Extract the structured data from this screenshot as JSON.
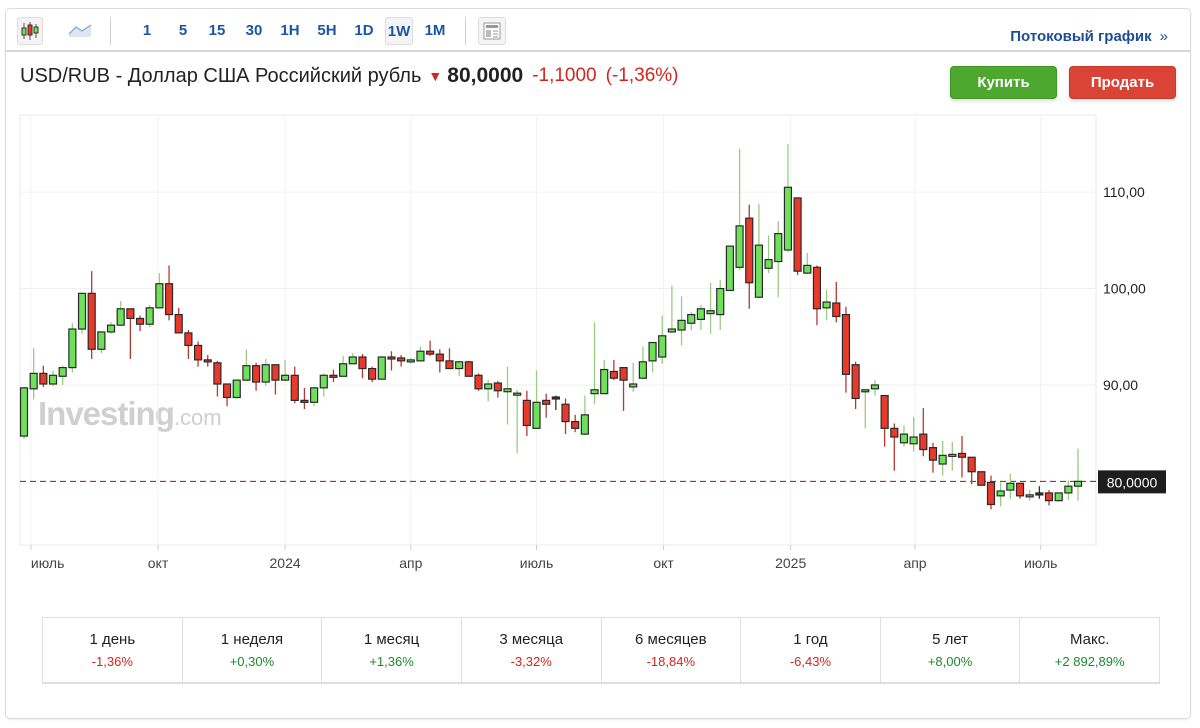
{
  "toolbar": {
    "chart_types": [
      {
        "icon": "candlestick-icon",
        "selected": true
      },
      {
        "icon": "area-chart-icon",
        "selected": false
      }
    ],
    "intervals": [
      {
        "label": "1",
        "selected": false
      },
      {
        "label": "5",
        "selected": false
      },
      {
        "label": "15",
        "selected": false
      },
      {
        "label": "30",
        "selected": false
      },
      {
        "label": "1H",
        "selected": false
      },
      {
        "label": "5H",
        "selected": false
      },
      {
        "label": "1D",
        "selected": false
      },
      {
        "label": "1W",
        "selected": true
      },
      {
        "label": "1M",
        "selected": false
      }
    ],
    "layout_icon": "news-layout-icon",
    "stream_link": "Потоковый график",
    "stream_chevron": "»"
  },
  "header": {
    "title": "USD/RUB - Доллар США Российский рубль",
    "direction_icon": "arrow-down-icon",
    "price": "80,0000",
    "change": "-1,1000",
    "change_pct": "(-1,36%)",
    "buy_label": "Купить",
    "sell_label": "Продать"
  },
  "colors": {
    "up_body": "#6ee05a",
    "down_body": "#e8392a",
    "up_wick": "#9ccb85",
    "down_wick": "#b33a32",
    "outline": "#2a2a2a",
    "price_line": "#8b1a1a",
    "buy": "#4ea72e",
    "sell": "#d94436",
    "link": "#1b56a6"
  },
  "watermark": {
    "brand": "Investing",
    ".com": ".com"
  },
  "chart_data": {
    "type": "candlestick",
    "interval": "1W",
    "ylim": [
      73.4,
      118
    ],
    "grid": true,
    "y_ticks": [
      {
        "value": 90,
        "label": "90,00"
      },
      {
        "value": 100,
        "label": "100,00"
      },
      {
        "value": 110,
        "label": "110,00"
      }
    ],
    "x_ticks": [
      {
        "date": "2023-07-01",
        "label": "июль"
      },
      {
        "date": "2023-10-01",
        "label": "окт"
      },
      {
        "date": "2024-01-01",
        "label": "2024"
      },
      {
        "date": "2024-04-01",
        "label": "апр"
      },
      {
        "date": "2024-07-01",
        "label": "июль"
      },
      {
        "date": "2024-10-01",
        "label": "окт"
      },
      {
        "date": "2025-01-01",
        "label": "2025"
      },
      {
        "date": "2025-04-01",
        "label": "апр"
      },
      {
        "date": "2025-07-01",
        "label": "июль"
      }
    ],
    "current_price": {
      "value": 80.0,
      "label": "80,0000"
    },
    "columns": [
      "date",
      "open",
      "high",
      "low",
      "close"
    ],
    "candles": [
      [
        "2023-06-26",
        84.7,
        89.8,
        84.4,
        89.7
      ],
      [
        "2023-07-03",
        89.6,
        93.8,
        88.5,
        91.2
      ],
      [
        "2023-07-10",
        91.2,
        92.0,
        89.8,
        90.1
      ],
      [
        "2023-07-17",
        90.1,
        91.5,
        89.9,
        91.0
      ],
      [
        "2023-07-24",
        90.9,
        92.0,
        90.0,
        91.8
      ],
      [
        "2023-07-31",
        91.8,
        96.4,
        91.3,
        95.8
      ],
      [
        "2023-08-07",
        95.8,
        99.5,
        95.3,
        99.5
      ],
      [
        "2023-08-14",
        99.5,
        101.8,
        92.7,
        93.7
      ],
      [
        "2023-08-21",
        93.7,
        95.5,
        93.3,
        95.5
      ],
      [
        "2023-08-28",
        95.5,
        96.5,
        95.3,
        96.2
      ],
      [
        "2023-09-04",
        96.2,
        98.7,
        96.2,
        97.9
      ],
      [
        "2023-09-11",
        97.9,
        97.9,
        92.7,
        96.9
      ],
      [
        "2023-09-18",
        96.9,
        97.2,
        95.6,
        96.3
      ],
      [
        "2023-09-25",
        96.3,
        98.3,
        96.0,
        98.0
      ],
      [
        "2023-10-02",
        98.0,
        101.6,
        98.0,
        100.5
      ],
      [
        "2023-10-09",
        100.5,
        102.4,
        96.7,
        97.3
      ],
      [
        "2023-10-16",
        97.3,
        98.0,
        95.4,
        95.4
      ],
      [
        "2023-10-23",
        95.4,
        95.7,
        92.7,
        94.1
      ],
      [
        "2023-10-30",
        94.1,
        94.5,
        91.9,
        92.6
      ],
      [
        "2023-11-06",
        92.6,
        93.1,
        91.9,
        92.5
      ],
      [
        "2023-11-13",
        92.3,
        92.5,
        88.8,
        90.1
      ],
      [
        "2023-11-20",
        90.1,
        90.1,
        87.8,
        88.7
      ],
      [
        "2023-11-27",
        88.7,
        90.5,
        88.6,
        90.5
      ],
      [
        "2023-12-04",
        90.5,
        93.7,
        90.4,
        92.0
      ],
      [
        "2023-12-11",
        92.0,
        92.3,
        89.4,
        90.3
      ],
      [
        "2023-12-18",
        90.3,
        92.7,
        89.9,
        92.1
      ],
      [
        "2023-12-25",
        92.1,
        92.1,
        89.0,
        90.5
      ],
      [
        "2024-01-01",
        90.5,
        92.6,
        90.4,
        91.0
      ],
      [
        "2024-01-08",
        91.0,
        91.9,
        88.1,
        88.4
      ],
      [
        "2024-01-15",
        88.4,
        89.7,
        87.5,
        88.2
      ],
      [
        "2024-01-22",
        88.2,
        89.8,
        87.8,
        89.7
      ],
      [
        "2024-01-29",
        89.7,
        91.2,
        88.8,
        91.0
      ],
      [
        "2024-02-05",
        91.0,
        91.6,
        90.3,
        90.9
      ],
      [
        "2024-02-12",
        90.9,
        93.0,
        90.9,
        92.2
      ],
      [
        "2024-02-19",
        92.2,
        93.3,
        92.2,
        92.9
      ],
      [
        "2024-02-26",
        92.9,
        93.2,
        90.7,
        91.7
      ],
      [
        "2024-03-04",
        91.7,
        91.9,
        90.3,
        90.6
      ],
      [
        "2024-03-11",
        90.6,
        93.0,
        90.6,
        92.9
      ],
      [
        "2024-03-18",
        92.9,
        93.5,
        91.5,
        92.8
      ],
      [
        "2024-03-25",
        92.8,
        93.1,
        91.9,
        92.5
      ],
      [
        "2024-04-01",
        92.5,
        92.8,
        92.2,
        92.6
      ],
      [
        "2024-04-08",
        92.5,
        94.0,
        92.5,
        93.5
      ],
      [
        "2024-04-15",
        93.5,
        94.6,
        93.0,
        93.2
      ],
      [
        "2024-04-22",
        93.2,
        93.7,
        91.3,
        92.5
      ],
      [
        "2024-04-29",
        92.5,
        93.8,
        91.7,
        91.7
      ],
      [
        "2024-05-06",
        91.7,
        92.5,
        90.9,
        92.4
      ],
      [
        "2024-05-13",
        92.4,
        92.5,
        90.9,
        90.9
      ],
      [
        "2024-05-20",
        91.0,
        91.2,
        89.4,
        89.6
      ],
      [
        "2024-05-27",
        89.6,
        90.5,
        88.3,
        90.1
      ],
      [
        "2024-06-03",
        90.2,
        90.4,
        88.7,
        89.4
      ],
      [
        "2024-06-10",
        89.3,
        91.9,
        85.9,
        89.6
      ],
      [
        "2024-06-17",
        89.1,
        89.5,
        82.9,
        89.15
      ],
      [
        "2024-06-24",
        88.4,
        89.4,
        84.7,
        85.8
      ],
      [
        "2024-07-01",
        85.5,
        91.5,
        85.5,
        88.2
      ],
      [
        "2024-07-08",
        88.4,
        89.1,
        86.6,
        88.0
      ],
      [
        "2024-07-15",
        88.7,
        88.9,
        87.4,
        88.75
      ],
      [
        "2024-07-22",
        88.0,
        88.6,
        84.9,
        86.2
      ],
      [
        "2024-07-29",
        86.2,
        86.9,
        85.1,
        85.5
      ],
      [
        "2024-08-05",
        84.9,
        88.9,
        84.8,
        86.9
      ],
      [
        "2024-08-12",
        89.1,
        96.5,
        88.0,
        89.5
      ],
      [
        "2024-08-19",
        89.1,
        92.6,
        89.1,
        91.6
      ],
      [
        "2024-08-26",
        91.4,
        92.6,
        90.5,
        90.7
      ],
      [
        "2024-09-02",
        91.8,
        91.8,
        87.3,
        90.5
      ],
      [
        "2024-09-09",
        89.8,
        92.3,
        89.3,
        90.1
      ],
      [
        "2024-09-16",
        90.7,
        94.0,
        90.6,
        92.4
      ],
      [
        "2024-09-23",
        92.5,
        94.4,
        91.3,
        94.4
      ],
      [
        "2024-09-30",
        92.9,
        97.2,
        92.2,
        95.1
      ],
      [
        "2024-10-07",
        95.5,
        100.3,
        95.4,
        95.8
      ],
      [
        "2024-10-14",
        95.7,
        99.2,
        94.1,
        96.7
      ],
      [
        "2024-10-21",
        96.4,
        97.6,
        95.7,
        97.3
      ],
      [
        "2024-10-28",
        96.8,
        98.3,
        95.7,
        97.9
      ],
      [
        "2024-11-04",
        97.4,
        100.6,
        95.3,
        97.7
      ],
      [
        "2024-11-11",
        97.3,
        100.9,
        95.7,
        100.0
      ],
      [
        "2024-11-18",
        99.8,
        104.4,
        99.8,
        104.4
      ],
      [
        "2024-11-25",
        102.2,
        114.5,
        101.9,
        106.5
      ],
      [
        "2024-12-02",
        107.3,
        108.7,
        97.9,
        100.6
      ],
      [
        "2024-12-09",
        99.1,
        108.8,
        99.0,
        104.5
      ],
      [
        "2024-12-16",
        102.1,
        105.5,
        101.6,
        103.0
      ],
      [
        "2024-12-23",
        102.8,
        107.0,
        99.1,
        105.7
      ],
      [
        "2024-12-30",
        104.0,
        115.0,
        103.8,
        110.5
      ],
      [
        "2025-01-06",
        109.4,
        109.4,
        101.4,
        101.8
      ],
      [
        "2025-01-13",
        101.6,
        103.7,
        101.5,
        102.4
      ],
      [
        "2025-01-20",
        102.2,
        102.4,
        96.2,
        97.9
      ],
      [
        "2025-01-27",
        98.0,
        99.9,
        96.7,
        98.6
      ],
      [
        "2025-02-03",
        98.5,
        100.7,
        96.5,
        97.1
      ],
      [
        "2025-02-10",
        97.3,
        98.1,
        89.2,
        91.1
      ],
      [
        "2025-02-17",
        92.1,
        92.4,
        87.5,
        88.6
      ],
      [
        "2025-02-24",
        89.4,
        89.5,
        85.5,
        89.5
      ],
      [
        "2025-03-03",
        89.6,
        90.5,
        88.9,
        90.0
      ],
      [
        "2025-03-10",
        88.9,
        88.9,
        83.6,
        85.5
      ],
      [
        "2025-03-17",
        85.5,
        86.0,
        81.1,
        84.6
      ],
      [
        "2025-03-24",
        84.0,
        85.8,
        83.6,
        84.9
      ],
      [
        "2025-03-31",
        83.9,
        86.7,
        83.1,
        84.6
      ],
      [
        "2025-04-07",
        84.9,
        87.6,
        82.6,
        83.3
      ],
      [
        "2025-04-14",
        83.5,
        84.0,
        80.9,
        82.2
      ],
      [
        "2025-04-21",
        81.8,
        84.2,
        80.6,
        82.7
      ],
      [
        "2025-04-28",
        82.7,
        84.1,
        81.1,
        82.8
      ],
      [
        "2025-05-05",
        82.9,
        84.7,
        80.4,
        82.5
      ],
      [
        "2025-05-12",
        82.5,
        82.5,
        79.7,
        81.0
      ],
      [
        "2025-05-19",
        81.0,
        81.0,
        79.6,
        79.6
      ],
      [
        "2025-05-26",
        79.9,
        80.6,
        77.1,
        77.6
      ],
      [
        "2025-06-02",
        78.5,
        79.9,
        77.4,
        79.0
      ],
      [
        "2025-06-09",
        79.1,
        80.8,
        78.2,
        79.8
      ],
      [
        "2025-06-16",
        79.8,
        79.8,
        78.2,
        78.5
      ],
      [
        "2025-06-23",
        78.5,
        79.1,
        78.0,
        78.6
      ],
      [
        "2025-06-30",
        78.8,
        79.5,
        78.2,
        78.8
      ],
      [
        "2025-07-07",
        78.8,
        79.1,
        77.5,
        78.0
      ],
      [
        "2025-07-14",
        78.0,
        78.8,
        77.9,
        78.8
      ],
      [
        "2025-07-21",
        78.8,
        80.1,
        78.1,
        79.5
      ],
      [
        "2025-07-28",
        79.5,
        83.4,
        78.0,
        80.0
      ]
    ]
  },
  "stats": [
    {
      "label": "1 день",
      "value": "-1,36%",
      "dir": "neg"
    },
    {
      "label": "1 неделя",
      "value": "+0,30%",
      "dir": "pos"
    },
    {
      "label": "1 месяц",
      "value": "+1,36%",
      "dir": "pos"
    },
    {
      "label": "3 месяца",
      "value": "-3,32%",
      "dir": "neg"
    },
    {
      "label": "6 месяцев",
      "value": "-18,84%",
      "dir": "neg"
    },
    {
      "label": "1 год",
      "value": "-6,43%",
      "dir": "neg"
    },
    {
      "label": "5 лет",
      "value": "+8,00%",
      "dir": "pos"
    },
    {
      "label": "Макс.",
      "value": "+2 892,89%",
      "dir": "pos"
    }
  ]
}
